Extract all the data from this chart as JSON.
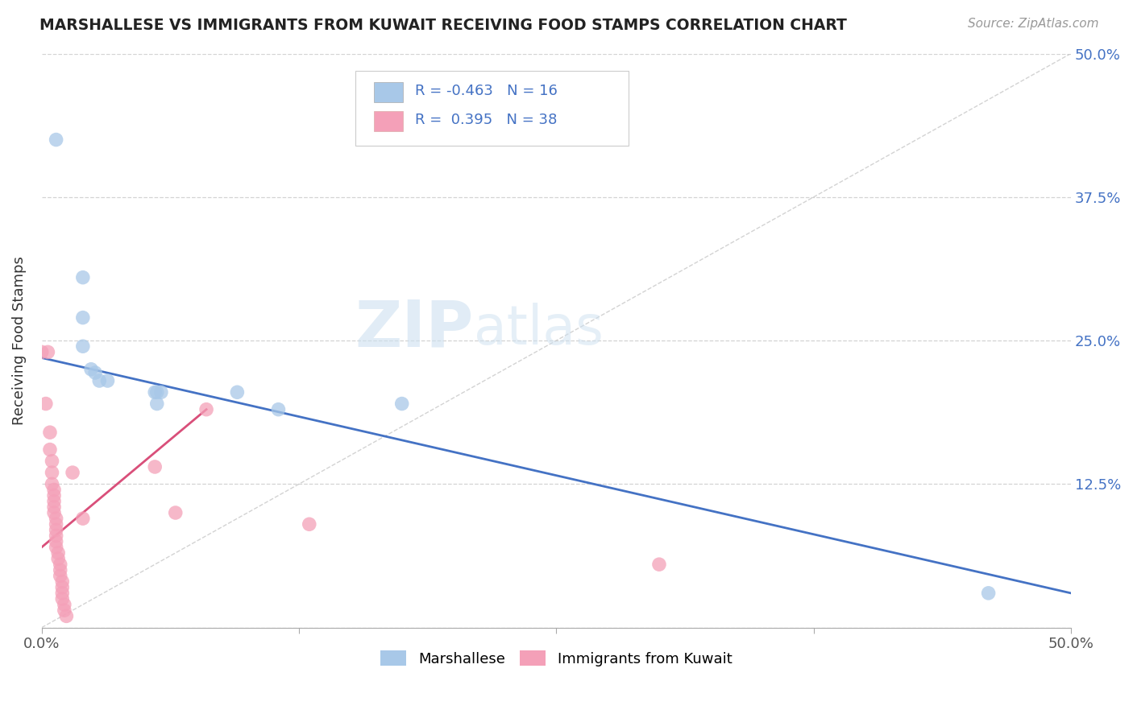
{
  "title": "MARSHALLESE VS IMMIGRANTS FROM KUWAIT RECEIVING FOOD STAMPS CORRELATION CHART",
  "source": "Source: ZipAtlas.com",
  "ylabel": "Receiving Food Stamps",
  "legend_label_1": "Marshallese",
  "legend_label_2": "Immigrants from Kuwait",
  "R1": -0.463,
  "N1": 16,
  "R2": 0.395,
  "N2": 38,
  "xlim": [
    0.0,
    0.5
  ],
  "ylim": [
    0.0,
    0.5
  ],
  "color_blue": "#a8c8e8",
  "color_pink": "#f4a0b8",
  "color_blue_line": "#4472c4",
  "color_pink_line": "#d94f7a",
  "color_diagonal": "#c8c8c8",
  "watermark_zip": "ZIP",
  "watermark_atlas": "atlas",
  "blue_points": [
    [
      0.007,
      0.425
    ],
    [
      0.02,
      0.305
    ],
    [
      0.02,
      0.27
    ],
    [
      0.02,
      0.245
    ],
    [
      0.024,
      0.225
    ],
    [
      0.026,
      0.222
    ],
    [
      0.028,
      0.215
    ],
    [
      0.032,
      0.215
    ],
    [
      0.055,
      0.205
    ],
    [
      0.056,
      0.205
    ],
    [
      0.056,
      0.195
    ],
    [
      0.058,
      0.205
    ],
    [
      0.095,
      0.205
    ],
    [
      0.115,
      0.19
    ],
    [
      0.175,
      0.195
    ],
    [
      0.46,
      0.03
    ]
  ],
  "pink_points": [
    [
      0.0,
      0.24
    ],
    [
      0.002,
      0.195
    ],
    [
      0.003,
      0.24
    ],
    [
      0.004,
      0.17
    ],
    [
      0.004,
      0.155
    ],
    [
      0.005,
      0.145
    ],
    [
      0.005,
      0.135
    ],
    [
      0.005,
      0.125
    ],
    [
      0.006,
      0.12
    ],
    [
      0.006,
      0.115
    ],
    [
      0.006,
      0.11
    ],
    [
      0.006,
      0.105
    ],
    [
      0.006,
      0.1
    ],
    [
      0.007,
      0.095
    ],
    [
      0.007,
      0.09
    ],
    [
      0.007,
      0.085
    ],
    [
      0.007,
      0.08
    ],
    [
      0.007,
      0.075
    ],
    [
      0.007,
      0.07
    ],
    [
      0.008,
      0.065
    ],
    [
      0.008,
      0.06
    ],
    [
      0.009,
      0.055
    ],
    [
      0.009,
      0.05
    ],
    [
      0.009,
      0.045
    ],
    [
      0.01,
      0.04
    ],
    [
      0.01,
      0.035
    ],
    [
      0.01,
      0.03
    ],
    [
      0.01,
      0.025
    ],
    [
      0.011,
      0.02
    ],
    [
      0.011,
      0.015
    ],
    [
      0.012,
      0.01
    ],
    [
      0.015,
      0.135
    ],
    [
      0.02,
      0.095
    ],
    [
      0.055,
      0.14
    ],
    [
      0.065,
      0.1
    ],
    [
      0.08,
      0.19
    ],
    [
      0.13,
      0.09
    ],
    [
      0.3,
      0.055
    ]
  ],
  "blue_trend_x": [
    0.0,
    0.5
  ],
  "blue_trend_y": [
    0.235,
    0.03
  ],
  "pink_trend_x": [
    0.0,
    0.08
  ],
  "pink_trend_y": [
    0.07,
    0.19
  ]
}
